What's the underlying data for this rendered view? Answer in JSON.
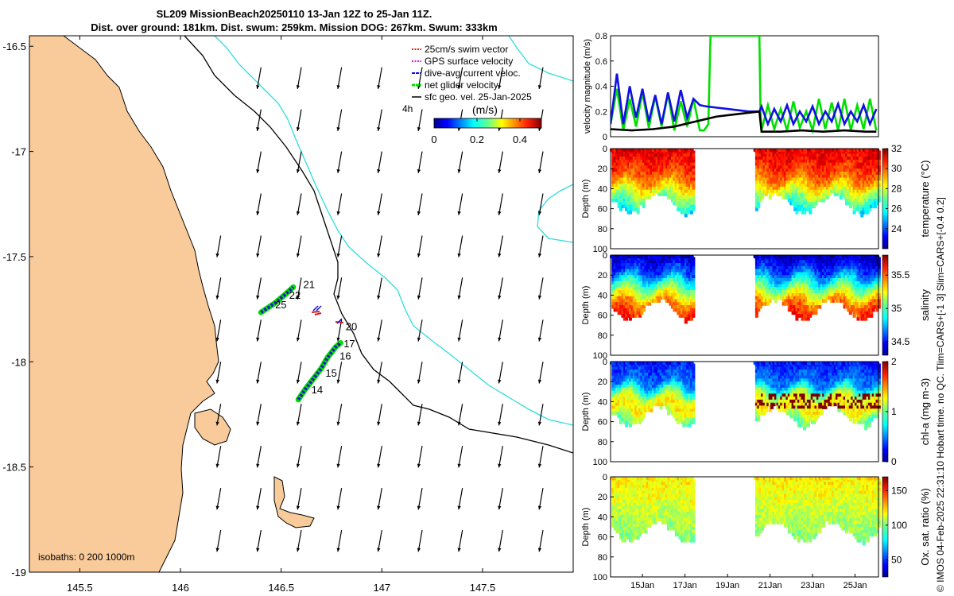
{
  "title": {
    "line1": "SL209 MissionBeach20250110 13-Jan 12Z to 25-Jan 11Z.",
    "line2": "Dist. over ground: 181km. Dist. swum: 259km. Mission DOG: 267km. Swum: 333km"
  },
  "side_text": "© IMOS 04-Feb-2025 22:31:10 Hobart time. no QC. Tlim=CARS+[-1 3] Slim=CARS+[-0.4 0.2]",
  "colors": {
    "land": "#f9cb9a",
    "isobath_200": "#000000",
    "isobath_1000": "#2fdcdc",
    "swim": "#d62020",
    "gps": "#e020e0",
    "dac": "#1010e0",
    "net": "#00e000",
    "sfc": "#000000"
  },
  "chart_data": [
    {
      "type": "map",
      "xlim": [
        145.25,
        147.95
      ],
      "ylim": [
        -19.0,
        -16.45
      ],
      "xticks": [
        145.5,
        146,
        146.5,
        147,
        147.5
      ],
      "xtick_labels": [
        "145.5",
        "146",
        "146.5",
        "147",
        "147.5"
      ],
      "yticks": [
        -16.5,
        -17,
        -17.5,
        -18,
        -18.5,
        -19
      ],
      "ytick_labels": [
        "-16.5",
        "-17",
        "-17.5",
        "-18",
        "-18.5",
        "-19"
      ],
      "legend": {
        "placement": "top-right",
        "entries": [
          "25cm/s swim vector",
          "GPS surface velocity",
          "dive-avg current veloc.",
          "net glider velocity",
          "sfc geo. vel. 25-Jan-2025"
        ]
      },
      "colorbar": {
        "label": "(m/s)",
        "note": "4h",
        "range": [
          0,
          0.5
        ],
        "tick_values": [
          0,
          0.2,
          0.4
        ],
        "ticks": [
          "0",
          "0.2",
          "0.4"
        ]
      },
      "isobaths_label": "isobaths: 0   200  1000m",
      "day_labels": [
        {
          "text": "21",
          "lon": 146.61,
          "lat": -17.65
        },
        {
          "text": "22",
          "lon": 146.54,
          "lat": -17.7
        },
        {
          "text": "25",
          "lon": 146.47,
          "lat": -17.745
        },
        {
          "text": "20",
          "lon": 146.82,
          "lat": -17.85
        },
        {
          "text": "17",
          "lon": 146.81,
          "lat": -17.93
        },
        {
          "text": "16",
          "lon": 146.79,
          "lat": -17.99
        },
        {
          "text": "15",
          "lon": 146.72,
          "lat": -18.07
        },
        {
          "text": "14",
          "lon": 146.65,
          "lat": -18.15
        }
      ],
      "track_segments": [
        [
          [
            146.4,
            -17.765
          ],
          [
            146.47,
            -17.72
          ],
          [
            146.52,
            -17.68
          ],
          [
            146.56,
            -17.645
          ]
        ],
        [
          [
            146.585,
            -18.18
          ],
          [
            146.62,
            -18.13
          ],
          [
            146.66,
            -18.08
          ],
          [
            146.7,
            -18.03
          ],
          [
            146.73,
            -17.98
          ],
          [
            146.77,
            -17.93
          ],
          [
            146.795,
            -17.91
          ]
        ]
      ],
      "sfc_velocity": {
        "lon_start": 146.2,
        "lon_step": 0.2,
        "lon_count": 9,
        "lat_start": -16.6,
        "lat_step": -0.2,
        "lat_count": 12,
        "u": -0.03,
        "v": -0.17
      }
    },
    {
      "type": "line",
      "ylabel": "velocity magnitude (m/s)",
      "ylim": [
        0,
        0.8
      ],
      "yticks": [
        0,
        0.2,
        0.4,
        0.6,
        0.8
      ],
      "ytick_labels": [
        "0",
        "0.2",
        "0.4",
        "0.6",
        "0.8"
      ],
      "xlim": [
        13.5,
        26.1
      ],
      "series": [
        {
          "name": "net glider velocity",
          "color": "#00e000",
          "x": [
            13.5,
            13.8,
            14.1,
            14.4,
            14.7,
            15.0,
            15.3,
            15.6,
            15.9,
            16.2,
            16.5,
            16.8,
            17.1,
            17.4,
            17.7,
            17.9,
            18.1,
            18.2,
            20.5,
            20.55,
            20.6,
            20.9,
            21.2,
            21.5,
            21.8,
            22.1,
            22.4,
            22.7,
            23.0,
            23.3,
            23.6,
            23.9,
            24.2,
            24.5,
            24.8,
            25.1,
            25.4,
            25.7,
            26.0
          ],
          "y": [
            0.1,
            0.38,
            0.05,
            0.3,
            0.08,
            0.35,
            0.07,
            0.32,
            0.08,
            0.34,
            0.05,
            0.28,
            0.08,
            0.3,
            0.05,
            0.05,
            0.1,
            0.8,
            0.8,
            0.2,
            0.05,
            0.25,
            0.06,
            0.22,
            0.05,
            0.28,
            0.07,
            0.2,
            0.05,
            0.3,
            0.06,
            0.27,
            0.05,
            0.3,
            0.05,
            0.25,
            0.06,
            0.3,
            0.05
          ]
        },
        {
          "name": "dive-avg current veloc.",
          "color": "#1010e0",
          "x": [
            13.5,
            13.8,
            14.1,
            14.4,
            14.7,
            15.0,
            15.3,
            15.6,
            15.9,
            16.2,
            16.5,
            16.8,
            17.1,
            17.4,
            17.7,
            18.0,
            18.5,
            19.0,
            19.5,
            20.0,
            20.5,
            20.6,
            20.9,
            21.2,
            21.5,
            21.8,
            22.1,
            22.4,
            22.7,
            23.0,
            23.3,
            23.6,
            23.9,
            24.2,
            24.5,
            24.8,
            25.1,
            25.4,
            25.7,
            26.0
          ],
          "y": [
            0.1,
            0.5,
            0.1,
            0.4,
            0.15,
            0.38,
            0.12,
            0.33,
            0.1,
            0.35,
            0.12,
            0.37,
            0.15,
            0.3,
            0.25,
            0.24,
            0.23,
            0.22,
            0.21,
            0.2,
            0.2,
            0.24,
            0.1,
            0.22,
            0.12,
            0.25,
            0.1,
            0.2,
            0.12,
            0.24,
            0.1,
            0.2,
            0.12,
            0.26,
            0.1,
            0.2,
            0.12,
            0.25,
            0.1,
            0.22
          ]
        },
        {
          "name": "sfc geo. vel.",
          "color": "#000000",
          "x": [
            13.5,
            14.5,
            15.5,
            16.5,
            17.5,
            18.5,
            19.5,
            20.5,
            20.6,
            21.5,
            22.5,
            23.5,
            24.5,
            25.5,
            26.0
          ],
          "y": [
            0.06,
            0.05,
            0.06,
            0.08,
            0.12,
            0.16,
            0.18,
            0.2,
            0.04,
            0.04,
            0.05,
            0.04,
            0.05,
            0.04,
            0.04
          ]
        }
      ]
    },
    {
      "type": "heatmap",
      "variable": "temperature",
      "colorbar_label": "temperature (°C)",
      "clim": [
        22,
        32
      ],
      "colorbar_ticks": [
        24,
        26,
        28,
        30,
        32
      ],
      "colorbar_tick_labels": [
        "24",
        "26",
        "28",
        "30",
        "32"
      ],
      "ylabel": "Depth (m)",
      "ylim": [
        0,
        100
      ],
      "yticks": [
        0,
        20,
        40,
        60,
        80,
        100
      ],
      "ytick_labels": [
        "0",
        "20",
        "40",
        "60",
        "80",
        "100"
      ],
      "profile": [
        [
          0,
          31.0
        ],
        [
          15,
          30.5
        ],
        [
          30,
          29.5
        ],
        [
          45,
          27.5
        ],
        [
          60,
          25.5
        ]
      ]
    },
    {
      "type": "heatmap",
      "variable": "salinity",
      "colorbar_label": "salinity",
      "clim": [
        34.3,
        35.8
      ],
      "colorbar_ticks": [
        34.5,
        35,
        35.5
      ],
      "colorbar_tick_labels": [
        "34.5",
        "35",
        "35.5"
      ],
      "ylabel": "Depth (m)",
      "ylim": [
        0,
        100
      ],
      "yticks": [
        0,
        20,
        40,
        60,
        80,
        100
      ],
      "ytick_labels": [
        "0",
        "20",
        "40",
        "60",
        "80",
        "100"
      ],
      "profile": [
        [
          0,
          34.4
        ],
        [
          15,
          34.6
        ],
        [
          30,
          35.0
        ],
        [
          45,
          35.4
        ],
        [
          60,
          35.6
        ]
      ]
    },
    {
      "type": "heatmap",
      "variable": "chl-a",
      "colorbar_label": "chl-a (mg m-3)",
      "clim": [
        0,
        2
      ],
      "colorbar_ticks": [
        0,
        1,
        2
      ],
      "colorbar_tick_labels": [
        "0",
        "1",
        "2"
      ],
      "ylabel": "Depth (m)",
      "ylim": [
        0,
        100
      ],
      "yticks": [
        0,
        20,
        40,
        60,
        80,
        100
      ],
      "ytick_labels": [
        "0",
        "20",
        "40",
        "60",
        "80",
        "100"
      ],
      "profile": [
        [
          0,
          0.3
        ],
        [
          20,
          0.5
        ],
        [
          35,
          1.2
        ],
        [
          45,
          1.3
        ],
        [
          60,
          0.9
        ]
      ]
    },
    {
      "type": "heatmap",
      "variable": "oxygen saturation",
      "colorbar_label": "Ox. sat. ratio (%)",
      "clim": [
        25,
        170
      ],
      "colorbar_ticks": [
        50,
        100,
        150
      ],
      "colorbar_tick_labels": [
        "50",
        "100",
        "150"
      ],
      "ylabel": "Depth (m)",
      "ylim": [
        0,
        100
      ],
      "yticks": [
        0,
        20,
        40,
        60,
        80,
        100
      ],
      "ytick_labels": [
        "0",
        "20",
        "40",
        "60",
        "80",
        "100"
      ],
      "profile": [
        [
          0,
          118
        ],
        [
          20,
          112
        ],
        [
          40,
          105
        ],
        [
          60,
          98
        ]
      ]
    }
  ],
  "time_axis": {
    "day_range": [
      13.5,
      26.1
    ],
    "data_gaps": [
      [
        17.35,
        20.25
      ]
    ],
    "ticks": [
      15,
      17,
      19,
      21,
      23,
      25
    ],
    "tick_labels": [
      "15Jan",
      "17Jan",
      "19Jan",
      "21Jan",
      "23Jan",
      "25Jan"
    ]
  }
}
